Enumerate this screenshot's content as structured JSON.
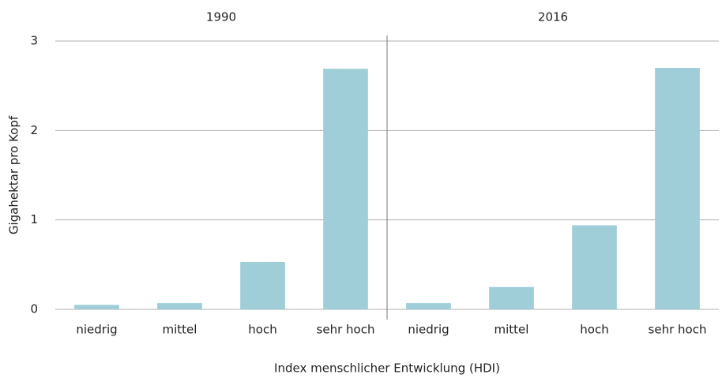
{
  "chart_data": {
    "type": "bar",
    "y_label": "Gigahektar pro Kopf",
    "x_label": "Index menschlicher Entwicklung (HDI)",
    "color": "#9fced8",
    "ylim": [
      0,
      3
    ],
    "yticks": [
      0,
      1,
      2,
      3
    ],
    "grid": true,
    "panels": [
      {
        "title": "1990",
        "categories": [
          "niedrig",
          "mittel",
          "hoch",
          "sehr hoch"
        ],
        "values": [
          0.05,
          0.07,
          0.53,
          2.69
        ]
      },
      {
        "title": "2016",
        "categories": [
          "niedrig",
          "mittel",
          "hoch",
          "sehr hoch"
        ],
        "values": [
          0.07,
          0.25,
          0.94,
          2.7
        ]
      }
    ]
  }
}
